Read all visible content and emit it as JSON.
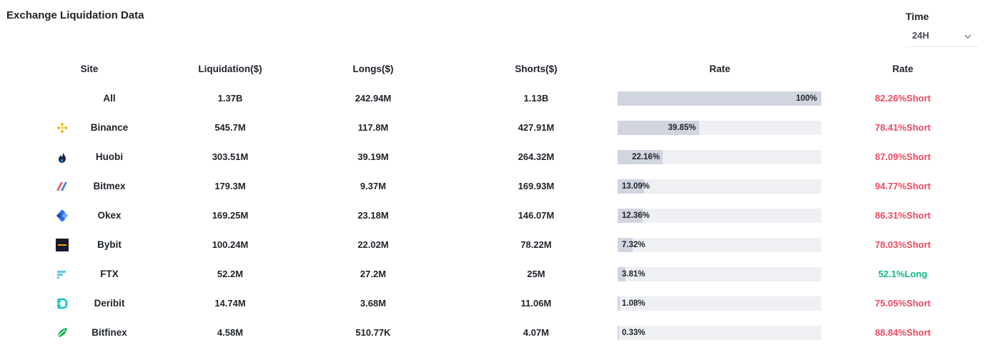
{
  "title": "Exchange Liquidation Data",
  "time": {
    "label": "Time",
    "value": "24H"
  },
  "headers": {
    "site": "Site",
    "liquidation": "Liquidation($)",
    "longs": "Longs($)",
    "shorts": "Shorts($)",
    "rate": "Rate",
    "rate2": "Rate"
  },
  "colors": {
    "short": "#f0485f",
    "long": "#10b981",
    "bar_fill": "#d0d5e0",
    "bar_track": "#eef0f3"
  },
  "rows": [
    {
      "site": "All",
      "icon": "",
      "liquidation": "1.37B",
      "longs": "242.94M",
      "shorts": "1.13B",
      "rate_text": "100%",
      "rate_value": 100,
      "side_text": "82.26%Short",
      "side": "short"
    },
    {
      "site": "Binance",
      "icon": "binance-icon",
      "liquidation": "545.7M",
      "longs": "117.8M",
      "shorts": "427.91M",
      "rate_text": "39.85%",
      "rate_value": 39.85,
      "side_text": "78.41%Short",
      "side": "short"
    },
    {
      "site": "Huobi",
      "icon": "huobi-icon",
      "liquidation": "303.51M",
      "longs": "39.19M",
      "shorts": "264.32M",
      "rate_text": "22.16%",
      "rate_value": 22.16,
      "side_text": "87.09%Short",
      "side": "short"
    },
    {
      "site": "Bitmex",
      "icon": "bitmex-icon",
      "liquidation": "179.3M",
      "longs": "9.37M",
      "shorts": "169.93M",
      "rate_text": "13.09%",
      "rate_value": 13.09,
      "side_text": "94.77%Short",
      "side": "short"
    },
    {
      "site": "Okex",
      "icon": "okex-icon",
      "liquidation": "169.25M",
      "longs": "23.18M",
      "shorts": "146.07M",
      "rate_text": "12.36%",
      "rate_value": 12.36,
      "side_text": "86.31%Short",
      "side": "short"
    },
    {
      "site": "Bybit",
      "icon": "bybit-icon",
      "liquidation": "100.24M",
      "longs": "22.02M",
      "shorts": "78.22M",
      "rate_text": "7.32%",
      "rate_value": 7.32,
      "side_text": "78.03%Short",
      "side": "short"
    },
    {
      "site": "FTX",
      "icon": "ftx-icon",
      "liquidation": "52.2M",
      "longs": "27.2M",
      "shorts": "25M",
      "rate_text": "3.81%",
      "rate_value": 3.81,
      "side_text": "52.1%Long",
      "side": "long"
    },
    {
      "site": "Deribit",
      "icon": "deribit-icon",
      "liquidation": "14.74M",
      "longs": "3.68M",
      "shorts": "11.06M",
      "rate_text": "1.08%",
      "rate_value": 1.08,
      "side_text": "75.05%Short",
      "side": "short"
    },
    {
      "site": "Bitfinex",
      "icon": "bitfinex-icon",
      "liquidation": "4.58M",
      "longs": "510.77K",
      "shorts": "4.07M",
      "rate_text": "0.33%",
      "rate_value": 0.33,
      "side_text": "88.84%Short",
      "side": "short"
    }
  ]
}
